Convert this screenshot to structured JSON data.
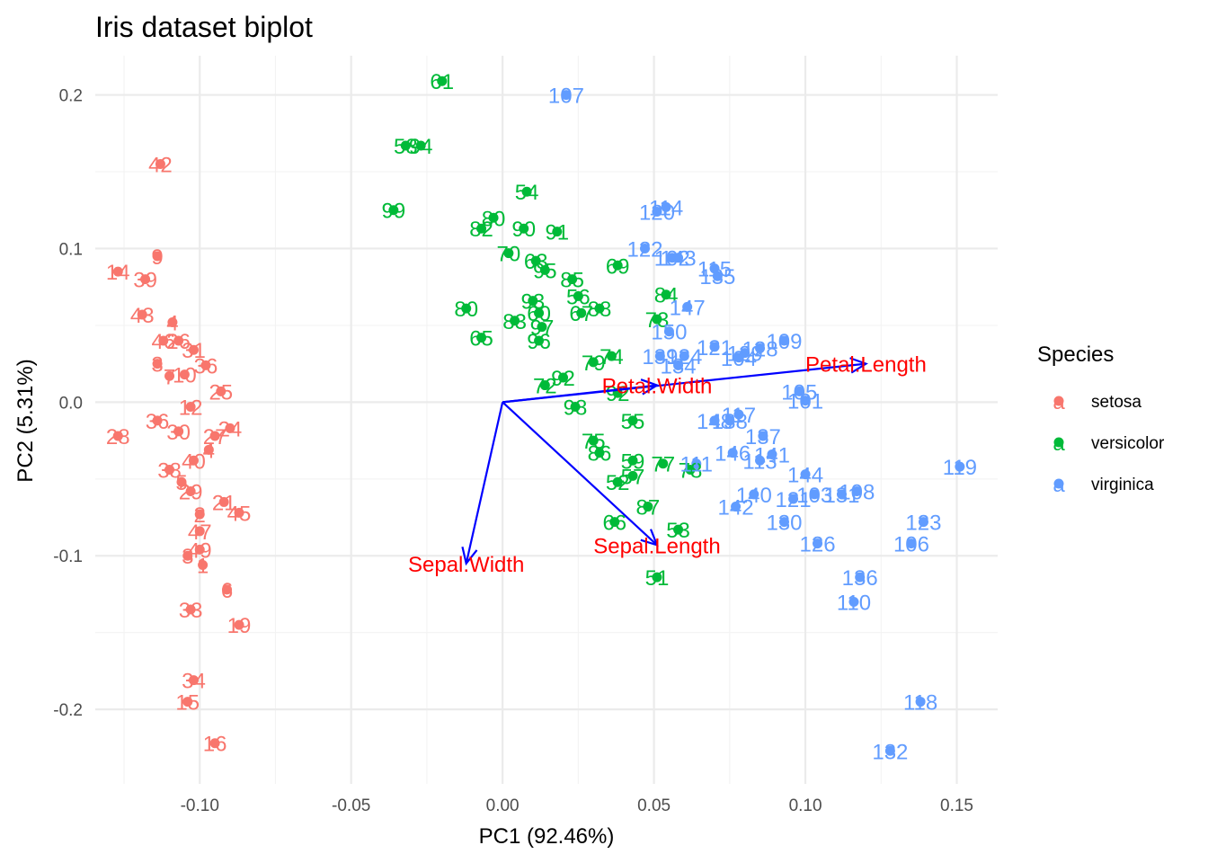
{
  "chart_data": {
    "type": "scatter",
    "title": "Iris dataset biplot",
    "xlabel": "PC1 (92.46%)",
    "ylabel": "PC2 (5.31%)",
    "xlim": [
      -0.1345,
      0.1635
    ],
    "ylim": [
      -0.2485,
      0.2255
    ],
    "x_ticks": [
      -0.1,
      -0.05,
      0.0,
      0.05,
      0.1,
      0.15
    ],
    "x_tick_labels": [
      "-0.10",
      "-0.05",
      "0.00",
      "0.05",
      "0.10",
      "0.15"
    ],
    "y_ticks": [
      -0.2,
      -0.1,
      0.0,
      0.1,
      0.2
    ],
    "y_tick_labels": [
      "-0.2",
      "-0.1",
      "0.0",
      "0.1",
      "0.2"
    ],
    "grid": true,
    "legend": {
      "title": "Species",
      "placement": "right",
      "entries": [
        {
          "name": "setosa",
          "color": "#F8766D"
        },
        {
          "name": "versicolor",
          "color": "#00BA38"
        },
        {
          "name": "virginica",
          "color": "#619CFF"
        }
      ],
      "key_glyph": "a"
    },
    "series": [
      {
        "name": "setosa",
        "color": "#F8766D",
        "points": [
          {
            "label": "42",
            "x": -0.113,
            "y": 0.155
          },
          {
            "label": "9",
            "x": -0.114,
            "y": 0.095
          },
          {
            "label": "14",
            "x": -0.127,
            "y": 0.085
          },
          {
            "label": "39",
            "x": -0.118,
            "y": 0.08
          },
          {
            "label": "43",
            "x": -0.119,
            "y": 0.057
          },
          {
            "label": "4",
            "x": -0.109,
            "y": 0.052
          },
          {
            "label": "46",
            "x": -0.112,
            "y": 0.04
          },
          {
            "label": "26",
            "x": -0.107,
            "y": 0.04
          },
          {
            "label": "31",
            "x": -0.102,
            "y": 0.034
          },
          {
            "label": "3",
            "x": -0.114,
            "y": 0.025
          },
          {
            "label": "36",
            "x": -0.098,
            "y": 0.024
          },
          {
            "label": "7",
            "x": -0.11,
            "y": 0.017
          },
          {
            "label": "10",
            "x": -0.105,
            "y": 0.018
          },
          {
            "label": "25",
            "x": -0.093,
            "y": 0.007
          },
          {
            "label": "12",
            "x": -0.103,
            "y": -0.003
          },
          {
            "label": "36",
            "x": -0.114,
            "y": -0.012
          },
          {
            "label": "28",
            "x": -0.127,
            "y": -0.022
          },
          {
            "label": "24",
            "x": -0.09,
            "y": -0.017
          },
          {
            "label": "30",
            "x": -0.107,
            "y": -0.019
          },
          {
            "label": "27",
            "x": -0.095,
            "y": -0.022
          },
          {
            "label": "4",
            "x": -0.097,
            "y": -0.031
          },
          {
            "label": "40",
            "x": -0.102,
            "y": -0.038
          },
          {
            "label": "38",
            "x": -0.11,
            "y": -0.044
          },
          {
            "label": "5",
            "x": -0.106,
            "y": -0.052
          },
          {
            "label": "29",
            "x": -0.103,
            "y": -0.058
          },
          {
            "label": "21",
            "x": -0.092,
            "y": -0.065
          },
          {
            "label": "45",
            "x": -0.087,
            "y": -0.072
          },
          {
            "label": "2",
            "x": -0.1,
            "y": -0.073
          },
          {
            "label": "47",
            "x": -0.1,
            "y": -0.084
          },
          {
            "label": "49",
            "x": -0.1,
            "y": -0.096
          },
          {
            "label": "3",
            "x": -0.104,
            "y": -0.1
          },
          {
            "label": "1",
            "x": -0.099,
            "y": -0.106
          },
          {
            "label": "6",
            "x": -0.091,
            "y": -0.122
          },
          {
            "label": "33",
            "x": -0.103,
            "y": -0.135
          },
          {
            "label": "19",
            "x": -0.087,
            "y": -0.145
          },
          {
            "label": "34",
            "x": -0.102,
            "y": -0.181
          },
          {
            "label": "15",
            "x": -0.104,
            "y": -0.195
          },
          {
            "label": "16",
            "x": -0.095,
            "y": -0.222
          }
        ]
      },
      {
        "name": "versicolor",
        "color": "#00BA38",
        "points": [
          {
            "label": "61",
            "x": -0.02,
            "y": 0.209
          },
          {
            "label": "58",
            "x": -0.032,
            "y": 0.167
          },
          {
            "label": "94",
            "x": -0.027,
            "y": 0.167
          },
          {
            "label": "54",
            "x": 0.008,
            "y": 0.137
          },
          {
            "label": "99",
            "x": -0.036,
            "y": 0.125
          },
          {
            "label": "80",
            "x": -0.003,
            "y": 0.12
          },
          {
            "label": "82",
            "x": -0.007,
            "y": 0.113
          },
          {
            "label": "90",
            "x": 0.007,
            "y": 0.113
          },
          {
            "label": "91",
            "x": 0.018,
            "y": 0.111
          },
          {
            "label": "70",
            "x": 0.002,
            "y": 0.097
          },
          {
            "label": "63",
            "x": 0.011,
            "y": 0.092
          },
          {
            "label": "69",
            "x": 0.038,
            "y": 0.089
          },
          {
            "label": "95",
            "x": 0.014,
            "y": 0.086
          },
          {
            "label": "85",
            "x": 0.023,
            "y": 0.08
          },
          {
            "label": "84",
            "x": 0.054,
            "y": 0.07
          },
          {
            "label": "93",
            "x": 0.01,
            "y": 0.066
          },
          {
            "label": "56",
            "x": 0.025,
            "y": 0.069
          },
          {
            "label": "88",
            "x": 0.032,
            "y": 0.061
          },
          {
            "label": "60",
            "x": 0.012,
            "y": 0.058
          },
          {
            "label": "67",
            "x": 0.026,
            "y": 0.058
          },
          {
            "label": "80",
            "x": -0.012,
            "y": 0.061
          },
          {
            "label": "83",
            "x": 0.004,
            "y": 0.053
          },
          {
            "label": "97",
            "x": 0.013,
            "y": 0.049
          },
          {
            "label": "65",
            "x": -0.007,
            "y": 0.042
          },
          {
            "label": "96",
            "x": 0.012,
            "y": 0.04
          },
          {
            "label": "73",
            "x": 0.051,
            "y": 0.054
          },
          {
            "label": "74",
            "x": 0.036,
            "y": 0.03
          },
          {
            "label": "79",
            "x": 0.03,
            "y": 0.026
          },
          {
            "label": "92",
            "x": 0.02,
            "y": 0.016
          },
          {
            "label": "72",
            "x": 0.014,
            "y": 0.011
          },
          {
            "label": "92",
            "x": 0.038,
            "y": 0.006
          },
          {
            "label": "98",
            "x": 0.024,
            "y": -0.003
          },
          {
            "label": "55",
            "x": 0.043,
            "y": -0.012
          },
          {
            "label": "75",
            "x": 0.03,
            "y": -0.025
          },
          {
            "label": "86",
            "x": 0.032,
            "y": -0.033
          },
          {
            "label": "59",
            "x": 0.043,
            "y": -0.038
          },
          {
            "label": "77",
            "x": 0.053,
            "y": -0.04
          },
          {
            "label": "78",
            "x": 0.062,
            "y": -0.044
          },
          {
            "label": "52",
            "x": 0.038,
            "y": -0.052
          },
          {
            "label": "57",
            "x": 0.043,
            "y": -0.048
          },
          {
            "label": "87",
            "x": 0.048,
            "y": -0.068
          },
          {
            "label": "66",
            "x": 0.037,
            "y": -0.078
          },
          {
            "label": "53",
            "x": 0.058,
            "y": -0.083
          },
          {
            "label": "51",
            "x": 0.051,
            "y": -0.114
          }
        ]
      },
      {
        "name": "virginica",
        "color": "#619CFF",
        "points": [
          {
            "label": "107",
            "x": 0.021,
            "y": 0.2
          },
          {
            "label": "114",
            "x": 0.054,
            "y": 0.127
          },
          {
            "label": "120",
            "x": 0.051,
            "y": 0.124
          },
          {
            "label": "122",
            "x": 0.047,
            "y": 0.1
          },
          {
            "label": "102",
            "x": 0.056,
            "y": 0.094
          },
          {
            "label": "143",
            "x": 0.058,
            "y": 0.094
          },
          {
            "label": "115",
            "x": 0.07,
            "y": 0.087
          },
          {
            "label": "135",
            "x": 0.071,
            "y": 0.082
          },
          {
            "label": "147",
            "x": 0.061,
            "y": 0.062
          },
          {
            "label": "150",
            "x": 0.055,
            "y": 0.046
          },
          {
            "label": "121",
            "x": 0.07,
            "y": 0.036
          },
          {
            "label": "104",
            "x": 0.078,
            "y": 0.029
          },
          {
            "label": "109",
            "x": 0.093,
            "y": 0.04
          },
          {
            "label": "128",
            "x": 0.085,
            "y": 0.035
          },
          {
            "label": "129",
            "x": 0.08,
            "y": 0.032
          },
          {
            "label": "124",
            "x": 0.06,
            "y": 0.03
          },
          {
            "label": "134",
            "x": 0.058,
            "y": 0.024
          },
          {
            "label": "139",
            "x": 0.052,
            "y": 0.03
          },
          {
            "label": "105",
            "x": 0.098,
            "y": 0.007
          },
          {
            "label": "101",
            "x": 0.1,
            "y": 0.001
          },
          {
            "label": "117",
            "x": 0.078,
            "y": -0.008
          },
          {
            "label": "138",
            "x": 0.075,
            "y": -0.012
          },
          {
            "label": "148",
            "x": 0.07,
            "y": -0.012
          },
          {
            "label": "137",
            "x": 0.086,
            "y": -0.022
          },
          {
            "label": "141",
            "x": 0.089,
            "y": -0.034
          },
          {
            "label": "146",
            "x": 0.076,
            "y": -0.033
          },
          {
            "label": "113",
            "x": 0.085,
            "y": -0.038
          },
          {
            "label": "144",
            "x": 0.1,
            "y": -0.047
          },
          {
            "label": "111",
            "x": 0.064,
            "y": -0.04
          },
          {
            "label": "140",
            "x": 0.083,
            "y": -0.06
          },
          {
            "label": "103",
            "x": 0.103,
            "y": -0.06
          },
          {
            "label": "108",
            "x": 0.117,
            "y": -0.058
          },
          {
            "label": "131",
            "x": 0.112,
            "y": -0.06
          },
          {
            "label": "121",
            "x": 0.096,
            "y": -0.063
          },
          {
            "label": "142",
            "x": 0.077,
            "y": -0.068
          },
          {
            "label": "130",
            "x": 0.093,
            "y": -0.078
          },
          {
            "label": "119",
            "x": 0.151,
            "y": -0.042
          },
          {
            "label": "123",
            "x": 0.139,
            "y": -0.078
          },
          {
            "label": "106",
            "x": 0.135,
            "y": -0.092
          },
          {
            "label": "126",
            "x": 0.104,
            "y": -0.092
          },
          {
            "label": "136",
            "x": 0.118,
            "y": -0.114
          },
          {
            "label": "110",
            "x": 0.116,
            "y": -0.13
          },
          {
            "label": "118",
            "x": 0.138,
            "y": -0.195
          },
          {
            "label": "132",
            "x": 0.128,
            "y": -0.227
          }
        ]
      }
    ],
    "loadings": [
      {
        "name": "Petal.Length",
        "x": 0.12,
        "y": 0.025
      },
      {
        "name": "Petal.Width",
        "x": 0.051,
        "y": 0.011
      },
      {
        "name": "Sepal.Length",
        "x": 0.051,
        "y": -0.093
      },
      {
        "name": "Sepal.Width",
        "x": -0.012,
        "y": -0.105
      }
    ],
    "loading_color": "#0000FF",
    "loading_label_color": "#FF0000"
  }
}
